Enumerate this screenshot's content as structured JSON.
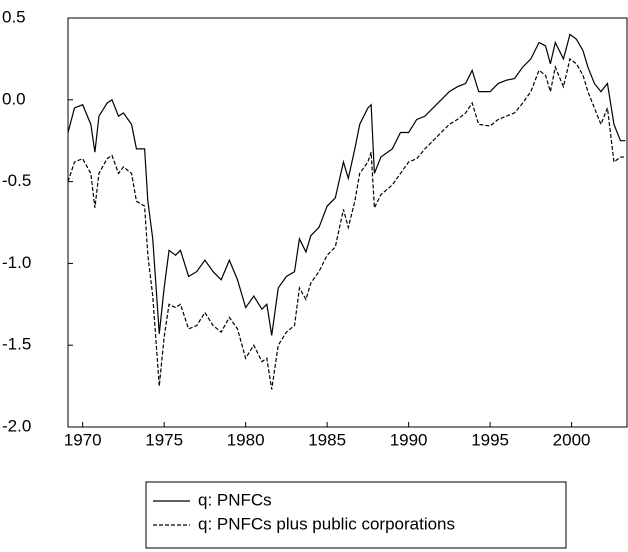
{
  "chart_data": {
    "type": "line",
    "x": [
      1969.1,
      1969.5,
      1970.0,
      1970.5,
      1970.75,
      1971.0,
      1971.5,
      1971.8,
      1972.2,
      1972.5,
      1973.0,
      1973.3,
      1973.8,
      1974.0,
      1974.3,
      1974.7,
      1975.0,
      1975.3,
      1975.7,
      1976.0,
      1976.5,
      1977.0,
      1977.5,
      1978.0,
      1978.5,
      1979.0,
      1979.5,
      1980.0,
      1980.5,
      1981.0,
      1981.3,
      1981.6,
      1982.0,
      1982.5,
      1983.0,
      1983.3,
      1983.7,
      1984.0,
      1984.5,
      1985.0,
      1985.5,
      1986.0,
      1986.3,
      1986.7,
      1987.0,
      1987.5,
      1987.7,
      1987.9,
      1988.3,
      1989.0,
      1989.5,
      1990.0,
      1990.5,
      1991.0,
      1991.5,
      1992.0,
      1992.5,
      1993.0,
      1993.5,
      1993.9,
      1994.3,
      1995.0,
      1995.5,
      1996.0,
      1996.5,
      1997.0,
      1997.5,
      1998.0,
      1998.4,
      1998.7,
      1999.0,
      1999.5,
      1999.9,
      2000.3,
      2000.7,
      2001.0,
      2001.4,
      2001.8,
      2002.2,
      2002.6,
      2003.0,
      2003.3
    ],
    "series": [
      {
        "name": "q: PNFCs",
        "color": "#000000",
        "dash": "solid",
        "values": [
          -0.2,
          -0.05,
          -0.03,
          -0.15,
          -0.32,
          -0.1,
          -0.02,
          0.0,
          -0.1,
          -0.08,
          -0.15,
          -0.3,
          -0.3,
          -0.62,
          -0.85,
          -1.43,
          -1.15,
          -0.92,
          -0.95,
          -0.92,
          -1.08,
          -1.05,
          -0.98,
          -1.05,
          -1.1,
          -0.98,
          -1.1,
          -1.27,
          -1.2,
          -1.28,
          -1.25,
          -1.44,
          -1.15,
          -1.08,
          -1.05,
          -0.85,
          -0.93,
          -0.83,
          -0.78,
          -0.65,
          -0.6,
          -0.38,
          -0.48,
          -0.3,
          -0.15,
          -0.05,
          -0.03,
          -0.45,
          -0.35,
          -0.3,
          -0.2,
          -0.2,
          -0.12,
          -0.1,
          -0.05,
          0.0,
          0.05,
          0.08,
          0.1,
          0.18,
          0.05,
          0.05,
          0.1,
          0.12,
          0.13,
          0.2,
          0.25,
          0.35,
          0.33,
          0.22,
          0.35,
          0.25,
          0.4,
          0.37,
          0.3,
          0.2,
          0.1,
          0.05,
          0.1,
          -0.15,
          -0.25,
          -0.25
        ]
      },
      {
        "name": "q: PNFCs plus public corporations",
        "color": "#000000",
        "dash": "dashed",
        "values": [
          -0.5,
          -0.38,
          -0.36,
          -0.45,
          -0.66,
          -0.45,
          -0.36,
          -0.34,
          -0.45,
          -0.41,
          -0.45,
          -0.62,
          -0.65,
          -0.95,
          -1.2,
          -1.75,
          -1.45,
          -1.25,
          -1.27,
          -1.25,
          -1.4,
          -1.38,
          -1.3,
          -1.38,
          -1.42,
          -1.33,
          -1.4,
          -1.58,
          -1.5,
          -1.6,
          -1.58,
          -1.77,
          -1.5,
          -1.42,
          -1.38,
          -1.15,
          -1.22,
          -1.12,
          -1.05,
          -0.95,
          -0.9,
          -0.67,
          -0.78,
          -0.62,
          -0.45,
          -0.38,
          -0.32,
          -0.66,
          -0.58,
          -0.52,
          -0.45,
          -0.38,
          -0.36,
          -0.3,
          -0.25,
          -0.2,
          -0.15,
          -0.12,
          -0.08,
          -0.02,
          -0.15,
          -0.16,
          -0.12,
          -0.1,
          -0.08,
          -0.02,
          0.05,
          0.18,
          0.15,
          0.05,
          0.2,
          0.08,
          0.25,
          0.22,
          0.15,
          0.05,
          -0.05,
          -0.15,
          -0.05,
          -0.38,
          -0.35,
          -0.35
        ]
      }
    ],
    "xlim": [
      1969.1,
      2003.4
    ],
    "xticks": [
      1970,
      1975,
      1980,
      1985,
      1990,
      1995,
      2000
    ],
    "ylim": [
      -2.0,
      0.5
    ],
    "yticks": [
      {
        "value": -2.0,
        "label": "-2.0"
      },
      {
        "value": -1.5,
        "label": "-1.5"
      },
      {
        "value": -1.0,
        "label": "-1.0"
      },
      {
        "value": -0.5,
        "label": "-0.5"
      },
      {
        "value": 0.0,
        "label": "0.0"
      },
      {
        "value": 0.5,
        "label": "0.5"
      }
    ],
    "legend": "bottom"
  }
}
